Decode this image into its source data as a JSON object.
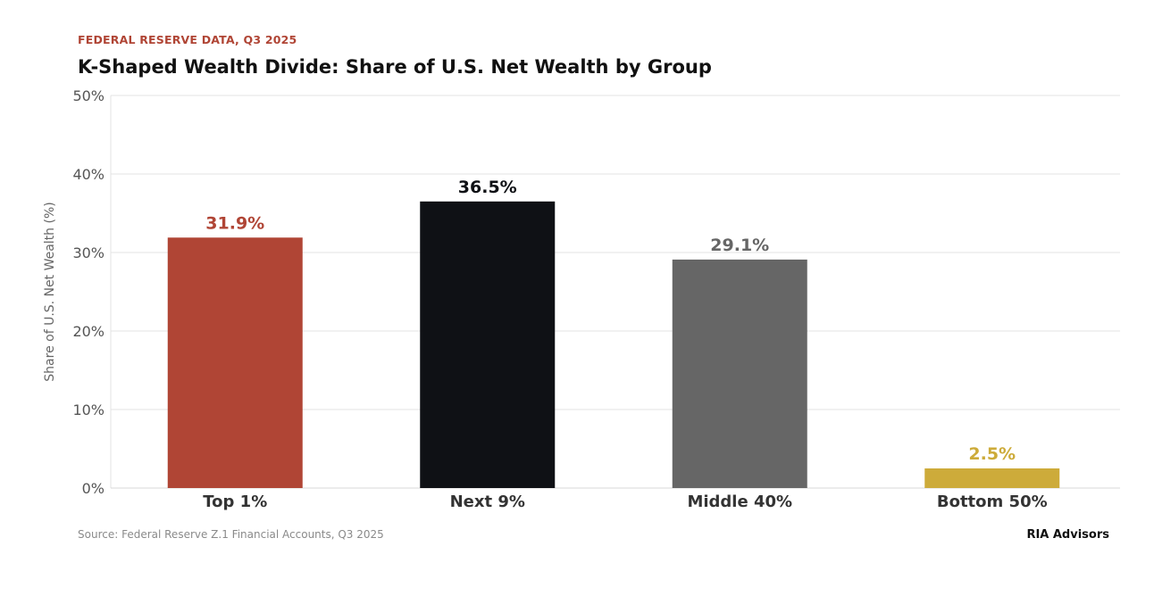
{
  "header": {
    "kicker": "FEDERAL RESERVE DATA, Q3 2025",
    "title": "K-Shaped Wealth Divide: Share of U.S. Net Wealth by Group"
  },
  "footer": {
    "source": "Source: Federal Reserve Z.1 Financial Accounts, Q3 2025",
    "brand": "RIA Advisors"
  },
  "chart_data": {
    "type": "bar",
    "title": "K-Shaped Wealth Divide: Share of U.S. Net Wealth by Group",
    "xlabel": "",
    "ylabel": "Share of U.S. Net Wealth (%)",
    "categories": [
      "Top 1%",
      "Next 9%",
      "Middle 40%",
      "Bottom 50%"
    ],
    "values": [
      31.9,
      36.5,
      29.1,
      2.5
    ],
    "value_labels": [
      "31.9%",
      "36.5%",
      "29.1%",
      "2.5%"
    ],
    "colors": [
      "#b04535",
      "#0f1115",
      "#666666",
      "#cdab3a"
    ],
    "ylim": [
      0,
      50
    ],
    "yticks": [
      0,
      10,
      20,
      30,
      40,
      50
    ],
    "ytick_labels": [
      "0%",
      "10%",
      "20%",
      "30%",
      "40%",
      "50%"
    ],
    "grid": true,
    "legend": "none"
  }
}
